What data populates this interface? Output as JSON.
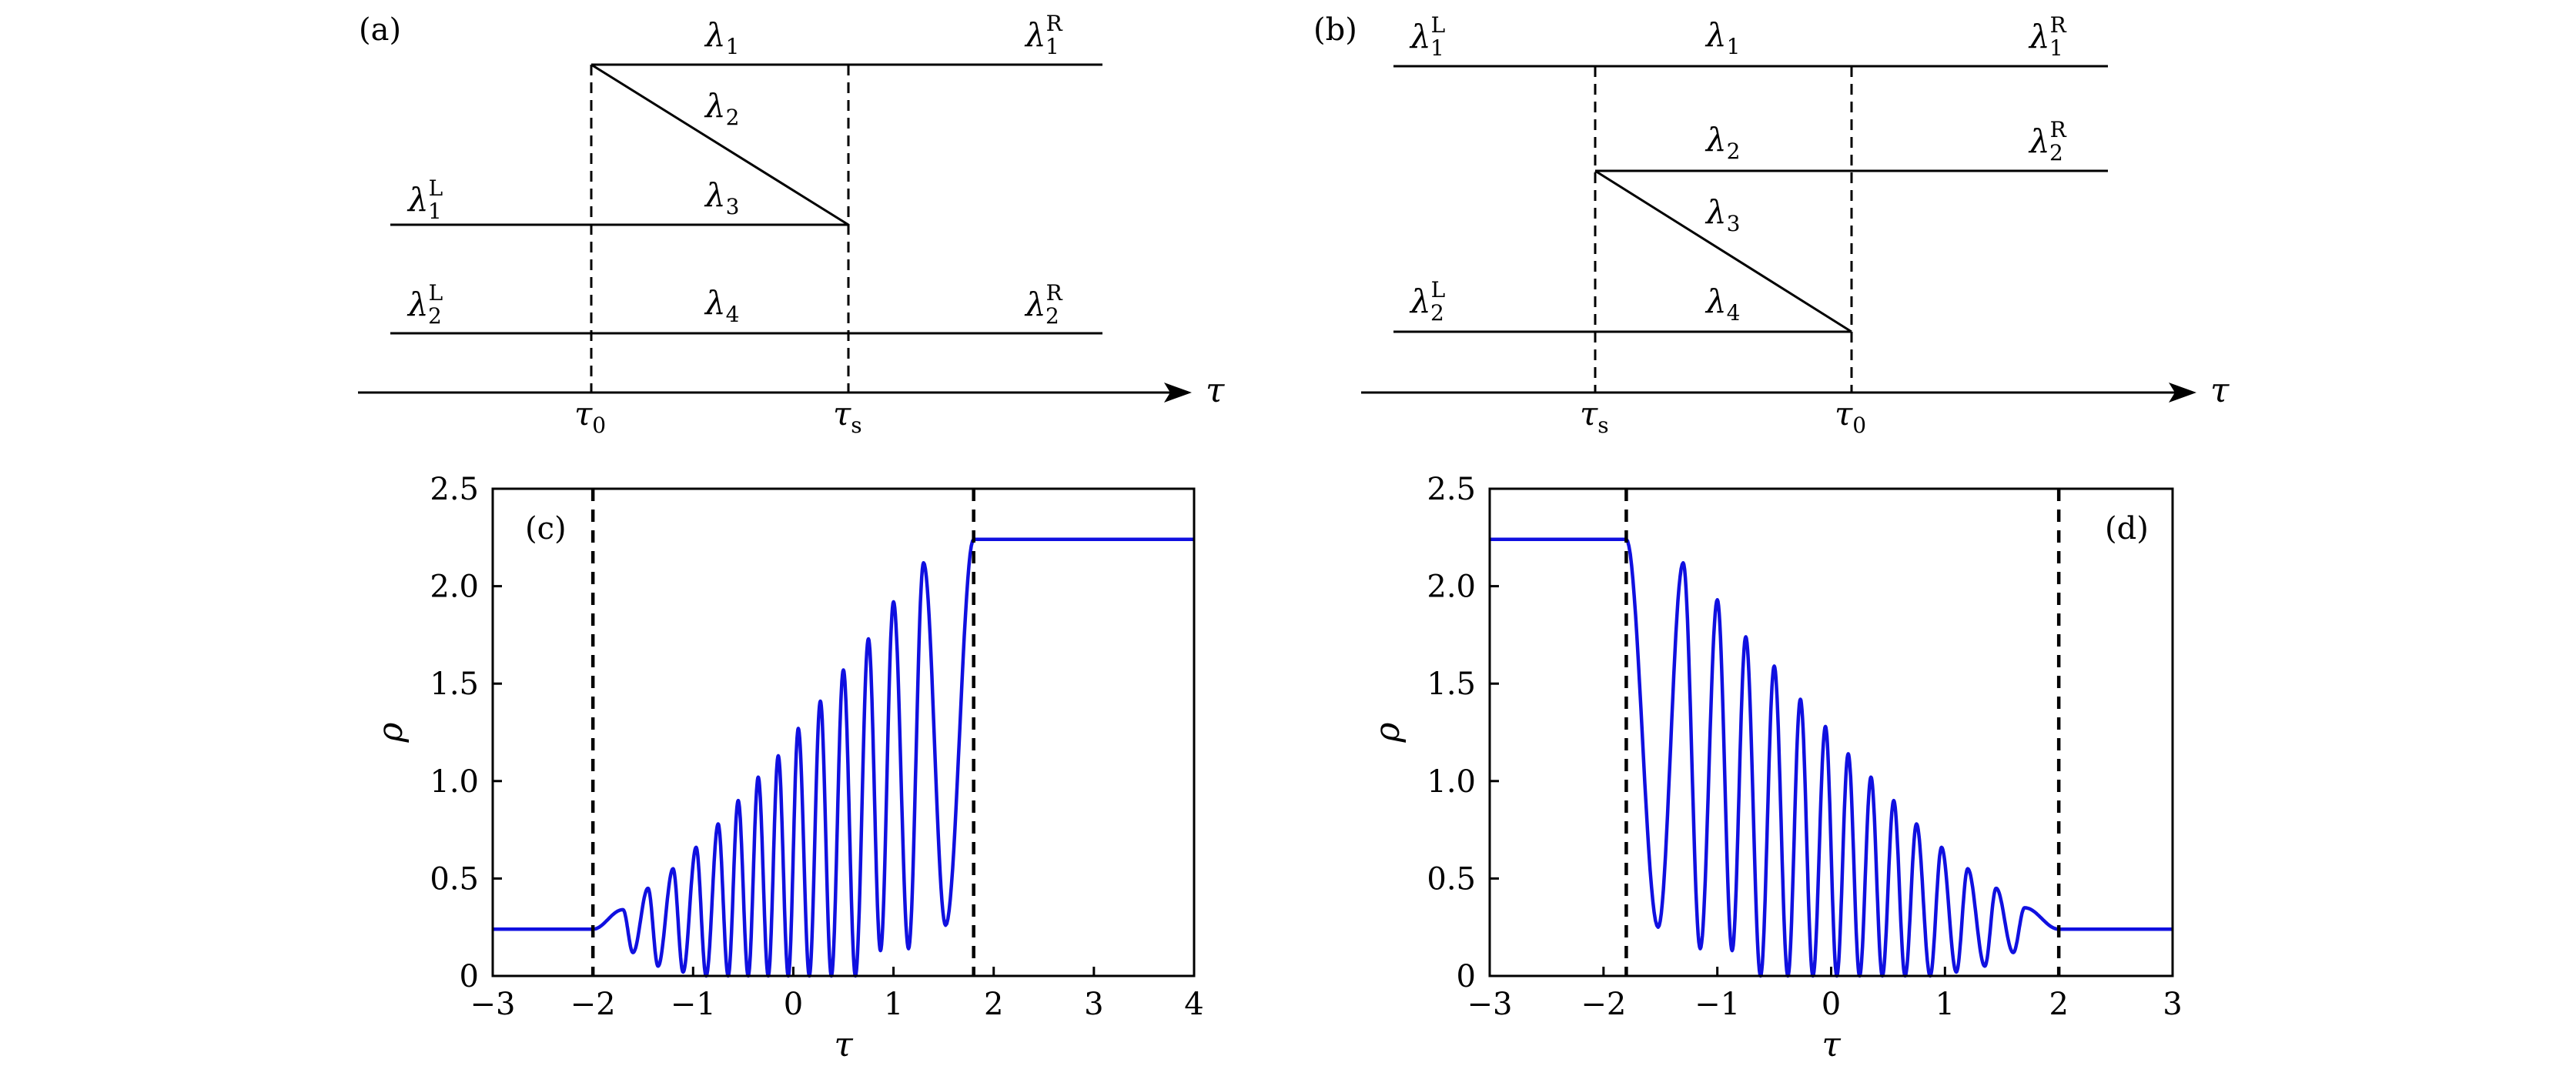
{
  "panel_a": {
    "label": "(a)",
    "levels": [
      "λ",
      "1",
      "λ",
      "2",
      "λ",
      "3",
      "λ",
      "4"
    ],
    "edges": {
      "left_1": "λ",
      "left_1_sub": "1",
      "left_1_sup": "L",
      "left_2": "λ",
      "left_2_sub": "2",
      "left_2_sup": "L",
      "right_1": "λ",
      "right_1_sub": "1",
      "right_1_sup": "R",
      "right_2": "λ",
      "right_2_sub": "2",
      "right_2_sup": "R"
    },
    "axis": "τ",
    "ticks": [
      {
        "sym": "τ",
        "sub": "0"
      },
      {
        "sym": "τ",
        "sub": "s"
      }
    ]
  },
  "panel_b": {
    "label": "(b)",
    "levels": [
      "λ",
      "1",
      "λ",
      "2",
      "λ",
      "3",
      "λ",
      "4"
    ],
    "edges": {
      "left_1": "λ",
      "left_1_sub": "1",
      "left_1_sup": "L",
      "left_2": "λ",
      "left_2_sub": "2",
      "left_2_sup": "L",
      "right_1": "λ",
      "right_1_sub": "1",
      "right_1_sup": "R",
      "right_2": "λ",
      "right_2_sub": "2",
      "right_2_sup": "R"
    },
    "axis": "τ",
    "ticks": [
      {
        "sym": "τ",
        "sub": "s"
      },
      {
        "sym": "τ",
        "sub": "0"
      }
    ]
  },
  "chart_data": [
    {
      "panel": "(c)",
      "type": "line",
      "xlabel": "τ",
      "ylabel": "ρ",
      "xlim": [
        -3,
        4
      ],
      "ylim": [
        0,
        2.5
      ],
      "xticks": [
        "−3",
        "−2",
        "−1",
        "0",
        "1",
        "2",
        "3",
        "4"
      ],
      "yticks": [
        "0",
        "0.5",
        "1.0",
        "1.5",
        "2.0",
        "2.5"
      ],
      "color": "#1010e0",
      "vlines": [
        -2.0,
        1.8
      ],
      "left_plateau": 0.24,
      "right_plateau": 2.24,
      "oscillation_start": -2.0,
      "oscillation_end": 1.8,
      "peaks": [
        {
          "x": -1.7,
          "y": 0.34
        },
        {
          "x": -1.45,
          "y": 0.45
        },
        {
          "x": -1.2,
          "y": 0.55
        },
        {
          "x": -0.97,
          "y": 0.66
        },
        {
          "x": -0.75,
          "y": 0.78
        },
        {
          "x": -0.55,
          "y": 0.9
        },
        {
          "x": -0.35,
          "y": 1.02
        },
        {
          "x": -0.15,
          "y": 1.13
        },
        {
          "x": 0.05,
          "y": 1.27
        },
        {
          "x": 0.27,
          "y": 1.41
        },
        {
          "x": 0.5,
          "y": 1.57
        },
        {
          "x": 0.75,
          "y": 1.73
        },
        {
          "x": 1.0,
          "y": 1.92
        },
        {
          "x": 1.3,
          "y": 2.12
        }
      ],
      "troughs": [
        {
          "x": -1.6,
          "y": 0.12
        },
        {
          "x": -1.35,
          "y": 0.05
        },
        {
          "x": -1.1,
          "y": 0.02
        },
        {
          "x": -0.87,
          "y": 0.0
        },
        {
          "x": -0.65,
          "y": 0.0
        },
        {
          "x": -0.45,
          "y": 0.0
        },
        {
          "x": -0.25,
          "y": 0.0
        },
        {
          "x": -0.05,
          "y": 0.0
        },
        {
          "x": 0.16,
          "y": 0.0
        },
        {
          "x": 0.38,
          "y": 0.0
        },
        {
          "x": 0.62,
          "y": 0.0
        },
        {
          "x": 0.87,
          "y": 0.13
        },
        {
          "x": 1.15,
          "y": 0.14
        },
        {
          "x": 1.52,
          "y": 0.26
        }
      ]
    },
    {
      "panel": "(d)",
      "type": "line",
      "xlabel": "τ",
      "ylabel": "ρ",
      "xlim": [
        -3,
        3
      ],
      "ylim": [
        0,
        2.5
      ],
      "xticks": [
        "−3",
        "−2",
        "−1",
        "0",
        "1",
        "2",
        "3"
      ],
      "yticks": [
        "0",
        "0.5",
        "1.0",
        "1.5",
        "2.0",
        "2.5"
      ],
      "color": "#1010e0",
      "vlines": [
        -1.8,
        2.0
      ],
      "left_plateau": 2.24,
      "right_plateau": 0.24,
      "oscillation_start": -1.8,
      "oscillation_end": 2.0,
      "peaks": [
        {
          "x": -1.3,
          "y": 2.12
        },
        {
          "x": -1.0,
          "y": 1.93
        },
        {
          "x": -0.75,
          "y": 1.74
        },
        {
          "x": -0.5,
          "y": 1.59
        },
        {
          "x": -0.27,
          "y": 1.42
        },
        {
          "x": -0.05,
          "y": 1.28
        },
        {
          "x": 0.15,
          "y": 1.14
        },
        {
          "x": 0.35,
          "y": 1.02
        },
        {
          "x": 0.55,
          "y": 0.9
        },
        {
          "x": 0.75,
          "y": 0.78
        },
        {
          "x": 0.97,
          "y": 0.66
        },
        {
          "x": 1.2,
          "y": 0.55
        },
        {
          "x": 1.45,
          "y": 0.45
        },
        {
          "x": 1.7,
          "y": 0.35
        }
      ],
      "troughs": [
        {
          "x": -1.52,
          "y": 0.25
        },
        {
          "x": -1.15,
          "y": 0.14
        },
        {
          "x": -0.87,
          "y": 0.13
        },
        {
          "x": -0.62,
          "y": 0.0
        },
        {
          "x": -0.38,
          "y": 0.0
        },
        {
          "x": -0.16,
          "y": 0.0
        },
        {
          "x": 0.05,
          "y": 0.0
        },
        {
          "x": 0.25,
          "y": 0.0
        },
        {
          "x": 0.45,
          "y": 0.0
        },
        {
          "x": 0.65,
          "y": 0.0
        },
        {
          "x": 0.87,
          "y": 0.0
        },
        {
          "x": 1.1,
          "y": 0.02
        },
        {
          "x": 1.35,
          "y": 0.05
        },
        {
          "x": 1.6,
          "y": 0.12
        }
      ]
    }
  ]
}
